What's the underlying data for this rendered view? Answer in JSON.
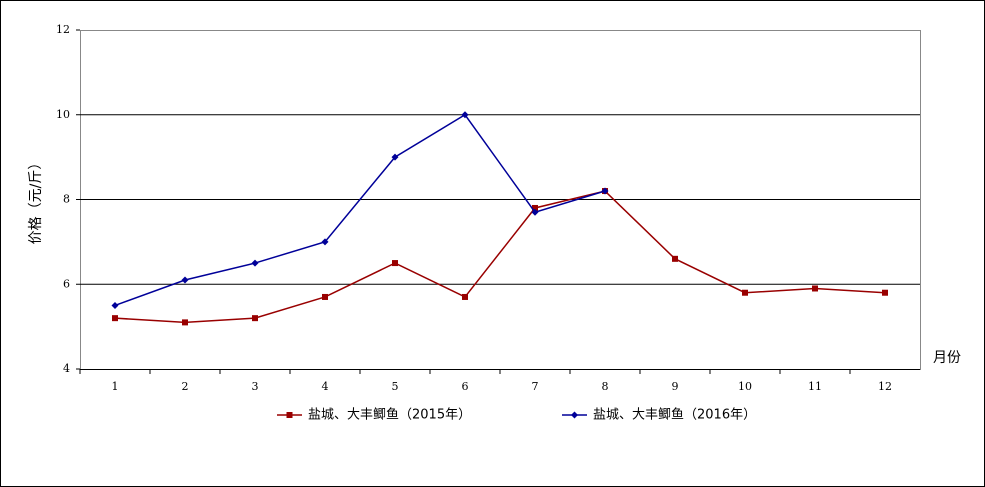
{
  "chart_data": {
    "type": "line",
    "x_label": "月份",
    "y_label": "价格（元/斤）",
    "categories": [
      "1",
      "2",
      "3",
      "4",
      "5",
      "6",
      "7",
      "8",
      "9",
      "10",
      "11",
      "12"
    ],
    "series": [
      {
        "name": "盐城、大丰鲫鱼（2015年）",
        "color": "#990000",
        "marker": "square",
        "values": [
          5.2,
          5.1,
          5.2,
          5.7,
          6.5,
          5.7,
          7.8,
          8.2,
          6.6,
          5.8,
          5.9,
          5.8
        ]
      },
      {
        "name": "盐城、大丰鲫鱼（2016年）",
        "color": "#000099",
        "marker": "diamond",
        "values": [
          5.5,
          6.1,
          6.5,
          7.0,
          9.0,
          10.0,
          7.7,
          8.2,
          null,
          null,
          null,
          null
        ]
      }
    ],
    "ylim": [
      4,
      12
    ],
    "yticks": [
      4,
      6,
      8,
      10,
      12
    ],
    "grid": true,
    "legend": "bottom"
  }
}
